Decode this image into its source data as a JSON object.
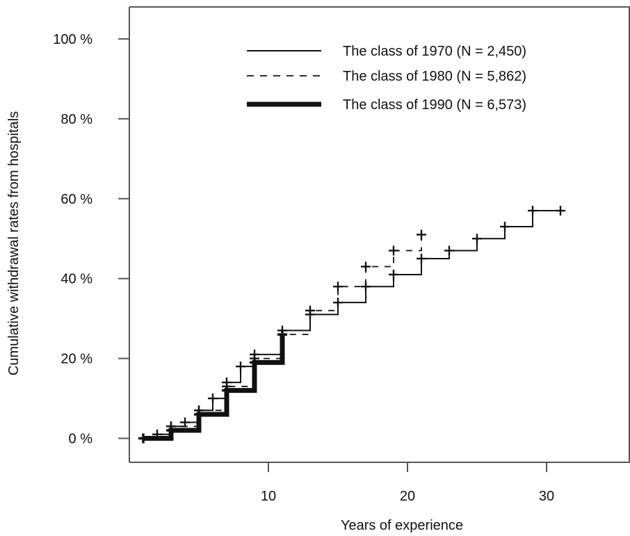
{
  "chart_data": {
    "type": "line",
    "step": true,
    "xlabel": "Years of experience",
    "ylabel": "Cumulative withdrawal rates from hospitals",
    "xlim": [
      0,
      36
    ],
    "ylim": [
      -6,
      108
    ],
    "xticks": [
      10,
      20,
      30
    ],
    "xtick_labels": [
      "10",
      "20",
      "30"
    ],
    "yticks": [
      0,
      20,
      40,
      60,
      80,
      100
    ],
    "ytick_labels": [
      "0 %",
      "20 %",
      "40 %",
      "60 %",
      "80 %",
      "100 %"
    ],
    "grid": false,
    "legend_position": "top-right",
    "colors": {
      "line": "#111111",
      "axis": "#555555",
      "text": "#111111"
    },
    "series": [
      {
        "name": "The class of 1970 (N = 2,450)",
        "style": "solid-thin",
        "x": [
          1,
          2,
          3,
          4,
          5,
          6,
          7,
          8,
          9,
          11,
          13,
          15,
          17,
          19,
          21,
          23,
          25,
          27,
          29,
          31
        ],
        "y": [
          0,
          1,
          3,
          4,
          7,
          10,
          14,
          18,
          21,
          27,
          31,
          34,
          38,
          41,
          45,
          47,
          50,
          53,
          57,
          57
        ]
      },
      {
        "name": "The class of 1980 (N = 5,862)",
        "style": "dashed",
        "x": [
          1,
          3,
          5,
          7,
          9,
          11,
          13,
          15,
          17,
          19,
          21
        ],
        "y": [
          0,
          3,
          7,
          13,
          20,
          26,
          32,
          38,
          43,
          47,
          51
        ]
      },
      {
        "name": "The class of 1990 (N = 6,573)",
        "style": "solid-thick",
        "x": [
          1,
          3,
          5,
          7,
          9,
          11
        ],
        "y": [
          0,
          2,
          6,
          12,
          19,
          26
        ]
      }
    ]
  }
}
